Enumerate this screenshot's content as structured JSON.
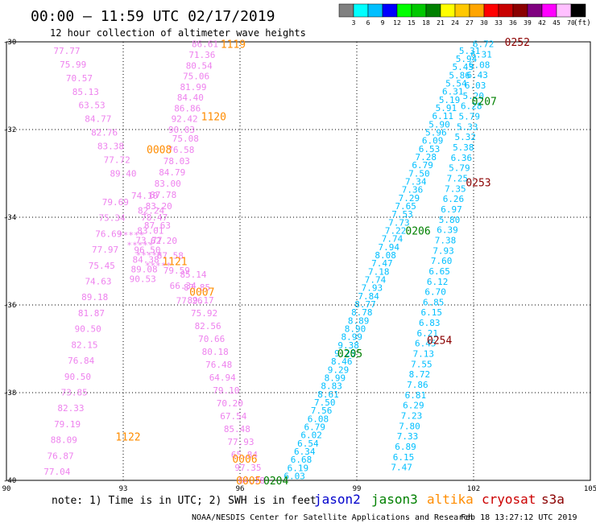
{
  "header": {
    "title": "00:00 – 11:59 UTC 02/17/2019",
    "subtitle": "12 hour collection of altimeter wave heights"
  },
  "colorbar": {
    "unit": "(ft)",
    "labels": [
      "3",
      "6",
      "9",
      "12",
      "15",
      "18",
      "21",
      "24",
      "27",
      "30",
      "33",
      "36",
      "39",
      "42",
      "45",
      "70"
    ],
    "colors": [
      "#808080",
      "#00ffff",
      "#00bfff",
      "#0000ff",
      "#00ff00",
      "#00c800",
      "#008000",
      "#ffff00",
      "#ffc800",
      "#ffa500",
      "#ff0000",
      "#c80000",
      "#8b0000",
      "#800080",
      "#ff00ff",
      "#ffc0ff",
      "#000000"
    ]
  },
  "axes": {
    "lon_ticks": [
      "90",
      "93",
      "96",
      "99",
      "102",
      "105"
    ],
    "lat_ticks": [
      "-30",
      "-32",
      "-34",
      "-36",
      "-38",
      "-40"
    ],
    "lon_range": [
      90,
      105
    ],
    "lat_range": [
      -40,
      -30
    ]
  },
  "legend": {
    "note": "note: 1) Time is in UTC; 2) SWH is in feet",
    "sats": [
      {
        "name": "jason2",
        "color": "#0000cc"
      },
      {
        "name": "jason3",
        "color": "#008000"
      },
      {
        "name": "altika",
        "color": "#ff8c00"
      },
      {
        "name": "cryosat",
        "color": "#cc0000"
      },
      {
        "name": "s3a",
        "color": "#8b0000"
      }
    ]
  },
  "footer": {
    "credit": "NOAA/NESDIS Center for Satellite Applications and Research",
    "timestamp": "Feb 18 13:27:12 UTC 2019"
  },
  "tracks": [
    {
      "name": "altika-track-1",
      "color": "#ee82ee",
      "lon0": 91.55,
      "lat0": -30.2,
      "lon1": 93.0,
      "lat1": -33.0,
      "values": [
        "77.77",
        "75.99",
        "70.57",
        "85.13",
        "63.53",
        "84.77",
        "82.76",
        "83.38",
        "77.72",
        "89.40"
      ]
    },
    {
      "name": "altika-track-2",
      "color": "#ee82ee",
      "lon0": 93.55,
      "lat0": -33.5,
      "lon1": 94.7,
      "lat1": -35.9,
      "values": [
        "74.10",
        "82.24",
        "87.63",
        "62.20",
        "67.58",
        "79.59",
        "66.34",
        "77.26"
      ]
    },
    {
      "name": "altika-track-3",
      "color": "#ee82ee",
      "lon0": 92.8,
      "lat0": -33.65,
      "lon1": 91.3,
      "lat1": -39.8,
      "values": [
        "79.69",
        "75.34",
        "76.69",
        "77.97",
        "75.45",
        "74.63",
        "89.18",
        "81.87",
        "90.50",
        "82.15",
        "76.84",
        "90.50",
        "73.85",
        "82.33",
        "79.19",
        "88.09",
        "76.87",
        "77.04"
      ]
    },
    {
      "name": "altika-track-4",
      "color": "#ee82ee",
      "lon0": 95.1,
      "lat0": -30.05,
      "lon1": 94.5,
      "lat1": -32.0,
      "values": [
        "86.61",
        "71.36",
        "80.54",
        "75.06",
        "81.99",
        "84.40",
        "86.86",
        "92.42",
        "90.03"
      ]
    },
    {
      "name": "altika-track-5",
      "color": "#ee82ee",
      "lon0": 94.6,
      "lat0": -32.2,
      "lon1": 93.8,
      "lat1": -34.0,
      "values": [
        "75.08",
        "76.58",
        "78.03",
        "84.79",
        "83.00",
        "87.78",
        "83.20",
        "78.47"
      ]
    },
    {
      "name": "altika-track-6",
      "color": "#ee82ee",
      "lon0": 93.7,
      "lat0": -34.3,
      "lon1": 93.5,
      "lat1": -35.4,
      "values": [
        "83.01",
        "73.77",
        "96.50",
        "84.38",
        "89.08",
        "90.53"
      ]
    },
    {
      "name": "altika-track-7",
      "color": "#ee82ee",
      "lon0": 94.8,
      "lat0": -35.3,
      "lon1": 96.3,
      "lat1": -40.0,
      "values": [
        "85.14",
        "87.85",
        "89.17",
        "75.92",
        "82.56",
        "70.66",
        "80.18",
        "76.48",
        "64.94",
        "79.10",
        "70.20",
        "67.54",
        "85.48",
        "77.93",
        "65.84",
        "97.35",
        "64.78"
      ]
    },
    {
      "name": "altika-track-8",
      "color": "#ee82ee",
      "lon0": 93.2,
      "lat0": -34.4,
      "lon1": 93.9,
      "lat1": -35.1,
      "values": [
        "*****",
        "*****",
        "*****",
        "*****"
      ]
    },
    {
      "name": "jason3-track-1",
      "color": "#00bfff",
      "lon0": 101.9,
      "lat0": -30.2,
      "lon1": 97.4,
      "lat1": -39.9,
      "values": [
        "5.31",
        "5.94",
        "5.43",
        "5.86",
        "5.54",
        "6.31",
        "5.19",
        "5.91",
        "6.11",
        "5.90",
        "5.96",
        "6.09",
        "6.53",
        "7.28",
        "6.79",
        "7.50",
        "7.34",
        "7.36",
        "7.29",
        "7.65",
        "7.53",
        "7.73",
        "7.22",
        "7.74",
        "7.94",
        "8.08",
        "7.47",
        "7.18",
        "7.74",
        "7.93",
        "7.84",
        "8.77",
        "8.78",
        "8.89",
        "8.90",
        "8.99",
        "9.38",
        "9.25",
        "8.46",
        "9.29",
        "8.99",
        "8.83",
        "8.61",
        "7.50",
        "7.56",
        "6.08",
        "6.79",
        "6.02",
        "6.54",
        "6.34",
        "6.68",
        "6.19",
        "6.03"
      ]
    },
    {
      "name": "jason3-track-2",
      "color": "#00bfff",
      "lon0": 102.25,
      "lat0": -30.05,
      "lon1": 100.15,
      "lat1": -39.7,
      "values": [
        "6.72",
        "6.31",
        "6.08",
        "6.43",
        "6.03",
        "5.20",
        "6.28",
        "5.79",
        "5.33",
        "5.32",
        "5.38",
        "6.36",
        "5.79",
        "7.25",
        "7.35",
        "6.26",
        "6.97",
        "5.80",
        "6.39",
        "7.38",
        "7.93",
        "7.60",
        "6.65",
        "6.12",
        "6.70",
        "6.85",
        "6.15",
        "6.83",
        "6.21",
        "6.45",
        "7.13",
        "7.55",
        "8.72",
        "7.86",
        "6.81",
        "6.29",
        "7.23",
        "7.80",
        "7.33",
        "6.89",
        "6.15",
        "7.47"
      ]
    }
  ],
  "time_labels": [
    {
      "text": "1119",
      "color": "#ff8c00",
      "lon": 95.5,
      "lat": -30.05
    },
    {
      "text": "1120",
      "color": "#ff8c00",
      "lon": 95.0,
      "lat": -31.7
    },
    {
      "text": "0008",
      "color": "#ff8c00",
      "lon": 93.6,
      "lat": -32.45
    },
    {
      "text": "1121",
      "color": "#ff8c00",
      "lon": 94.0,
      "lat": -35.0
    },
    {
      "text": "0007",
      "color": "#ff8c00",
      "lon": 94.7,
      "lat": -35.7
    },
    {
      "text": "1122",
      "color": "#ff8c00",
      "lon": 92.8,
      "lat": -39.0
    },
    {
      "text": "0006",
      "color": "#ff8c00",
      "lon": 95.8,
      "lat": -39.5
    },
    {
      "text": "0005",
      "color": "#ff8c00",
      "lon": 95.9,
      "lat": -40.0
    },
    {
      "text": "0204",
      "color": "#008000",
      "lon": 96.6,
      "lat": -40.0
    },
    {
      "text": "0205",
      "color": "#008000",
      "lon": 98.5,
      "lat": -37.1
    },
    {
      "text": "0206",
      "color": "#008000",
      "lon": 100.25,
      "lat": -34.3
    },
    {
      "text": "0207",
      "color": "#008000",
      "lon": 101.95,
      "lat": -31.35
    },
    {
      "text": "0252",
      "color": "#8b0000",
      "lon": 102.8,
      "lat": -30.0
    },
    {
      "text": "0253",
      "color": "#8b0000",
      "lon": 101.8,
      "lat": -33.2
    },
    {
      "text": "0254",
      "color": "#8b0000",
      "lon": 100.8,
      "lat": -36.8
    }
  ]
}
